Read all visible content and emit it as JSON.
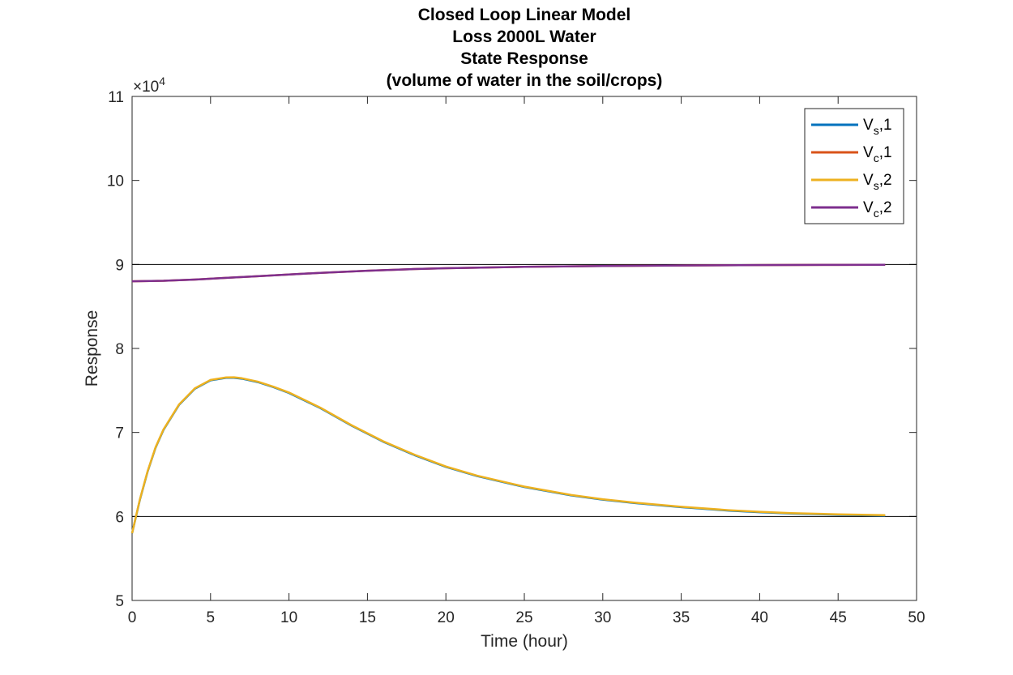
{
  "chart_data": {
    "type": "line",
    "title": [
      "Closed Loop Linear Model",
      "Loss 2000L Water",
      "State Response",
      "(volume of water in the soil/crops)"
    ],
    "xlabel": "Time (hour)",
    "ylabel": "Response",
    "xlim": [
      0,
      50
    ],
    "ylim": [
      50000,
      110000
    ],
    "x_ticks": [
      0,
      5,
      10,
      15,
      20,
      25,
      30,
      35,
      40,
      45,
      50
    ],
    "y_ticks": [
      5,
      6,
      7,
      8,
      9,
      10,
      11
    ],
    "y_exponent_label": "×10",
    "y_exponent_power": "4",
    "reference_lines": [
      90000,
      60000
    ],
    "legend_position": "top-right",
    "series": [
      {
        "name": "V",
        "sub": "s",
        "suffix": ",1",
        "color": "#0072BD",
        "x": [
          0,
          0.5,
          1,
          1.5,
          2,
          3,
          4,
          5,
          6,
          6.5,
          7,
          8,
          9,
          10,
          12,
          14,
          16,
          18,
          20,
          22,
          25,
          28,
          30,
          32,
          35,
          38,
          40,
          42,
          45,
          48
        ],
        "y": [
          58000,
          62000,
          65400,
          68200,
          70300,
          73300,
          75200,
          76200,
          76500,
          76500,
          76400,
          76000,
          75400,
          74700,
          72900,
          70800,
          68900,
          67300,
          65900,
          64800,
          63500,
          62500,
          62000,
          61600,
          61100,
          60700,
          60500,
          60350,
          60200,
          60100
        ]
      },
      {
        "name": "V",
        "sub": "c",
        "suffix": ",1",
        "color": "#D95319",
        "x": [
          0,
          2,
          4,
          6,
          8,
          10,
          12,
          15,
          18,
          20,
          25,
          30,
          35,
          40,
          45,
          48
        ],
        "y": [
          88000,
          88050,
          88200,
          88400,
          88600,
          88800,
          89000,
          89250,
          89450,
          89550,
          89720,
          89820,
          89880,
          89920,
          89950,
          89960
        ]
      },
      {
        "name": "V",
        "sub": "s",
        "suffix": ",2",
        "color": "#EDB120",
        "x": [
          0,
          0.5,
          1,
          1.5,
          2,
          3,
          4,
          5,
          6,
          6.5,
          7,
          8,
          9,
          10,
          12,
          14,
          16,
          18,
          20,
          22,
          25,
          28,
          30,
          32,
          35,
          38,
          40,
          42,
          45,
          48
        ],
        "y": [
          58000,
          62050,
          65450,
          68250,
          70350,
          73350,
          75250,
          76250,
          76550,
          76560,
          76450,
          76050,
          75450,
          74750,
          72950,
          70850,
          68950,
          67350,
          65950,
          64850,
          63550,
          62550,
          62050,
          61650,
          61150,
          60750,
          60550,
          60400,
          60250,
          60150
        ]
      },
      {
        "name": "V",
        "sub": "c",
        "suffix": ",2",
        "color": "#7E2F8E",
        "x": [
          0,
          2,
          4,
          6,
          8,
          10,
          12,
          15,
          18,
          20,
          25,
          30,
          35,
          40,
          45,
          48
        ],
        "y": [
          88000,
          88050,
          88200,
          88400,
          88600,
          88800,
          89000,
          89250,
          89450,
          89550,
          89720,
          89820,
          89880,
          89920,
          89950,
          89960
        ]
      }
    ]
  }
}
